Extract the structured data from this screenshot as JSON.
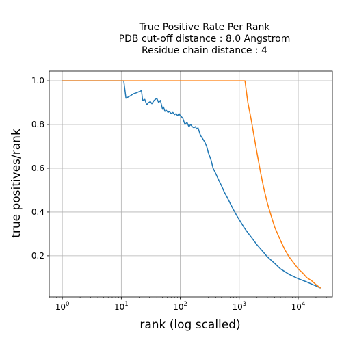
{
  "chart_data": {
    "type": "line",
    "title_lines": [
      "True Positive Rate Per Rank",
      "PDB cut-off distance : 8.0 Angstrom",
      "Residue chain distance : 4"
    ],
    "xlabel": "rank (log scalled)",
    "ylabel": "true positives/rank",
    "x_scale": "log",
    "xlim": [
      0.6,
      38000
    ],
    "ylim": [
      0.012,
      1.044
    ],
    "x_ticks": [
      {
        "base": "10",
        "exp": "0",
        "value": 1
      },
      {
        "base": "10",
        "exp": "1",
        "value": 10
      },
      {
        "base": "10",
        "exp": "2",
        "value": 100
      },
      {
        "base": "10",
        "exp": "3",
        "value": 1000
      },
      {
        "base": "10",
        "exp": "4",
        "value": 10000
      }
    ],
    "y_ticks": [
      {
        "label": "0.2",
        "value": 0.2
      },
      {
        "label": "0.4",
        "value": 0.4
      },
      {
        "label": "0.6",
        "value": 0.6
      },
      {
        "label": "0.8",
        "value": 0.8
      },
      {
        "label": "1.0",
        "value": 1.0
      }
    ],
    "grid": true,
    "legend": "none",
    "series": [
      {
        "color": "#1f77b4",
        "x": [
          1,
          10,
          11,
          12,
          14,
          16,
          18,
          20,
          22,
          23,
          25,
          27,
          29,
          31,
          33,
          36,
          38,
          40,
          43,
          46,
          50,
          52,
          55,
          58,
          62,
          65,
          70,
          75,
          80,
          85,
          90,
          95,
          100,
          110,
          120,
          130,
          140,
          150,
          160,
          170,
          180,
          190,
          200,
          220,
          240,
          260,
          280,
          300,
          330,
          360,
          400,
          450,
          500,
          560,
          630,
          700,
          800,
          900,
          1000,
          1200,
          1400,
          1600,
          2000,
          2500,
          3000,
          4000,
          5000,
          7000,
          10000,
          14000,
          20000,
          24000
        ],
        "y": [
          1.0,
          1.0,
          1.0,
          0.92,
          0.93,
          0.94,
          0.945,
          0.95,
          0.955,
          0.91,
          0.915,
          0.89,
          0.9,
          0.905,
          0.895,
          0.91,
          0.915,
          0.92,
          0.9,
          0.91,
          0.87,
          0.88,
          0.86,
          0.865,
          0.855,
          0.86,
          0.85,
          0.855,
          0.845,
          0.85,
          0.84,
          0.85,
          0.84,
          0.83,
          0.8,
          0.81,
          0.79,
          0.8,
          0.79,
          0.785,
          0.79,
          0.78,
          0.785,
          0.75,
          0.735,
          0.72,
          0.7,
          0.67,
          0.64,
          0.6,
          0.575,
          0.545,
          0.52,
          0.49,
          0.465,
          0.44,
          0.41,
          0.385,
          0.365,
          0.33,
          0.305,
          0.285,
          0.25,
          0.22,
          0.195,
          0.165,
          0.14,
          0.115,
          0.095,
          0.08,
          0.062,
          0.052
        ]
      },
      {
        "color": "#ff7f0e",
        "x": [
          1,
          1000,
          1250,
          1400,
          1600,
          1800,
          2000,
          2300,
          2600,
          3000,
          3500,
          4000,
          5000,
          6000,
          7000,
          8500,
          10000,
          12000,
          14000,
          17000,
          20000,
          24000
        ],
        "y": [
          1.0,
          1.0,
          1.0,
          0.9,
          0.82,
          0.74,
          0.67,
          0.58,
          0.51,
          0.44,
          0.38,
          0.33,
          0.27,
          0.225,
          0.195,
          0.165,
          0.14,
          0.12,
          0.1,
          0.085,
          0.068,
          0.052
        ]
      }
    ]
  }
}
